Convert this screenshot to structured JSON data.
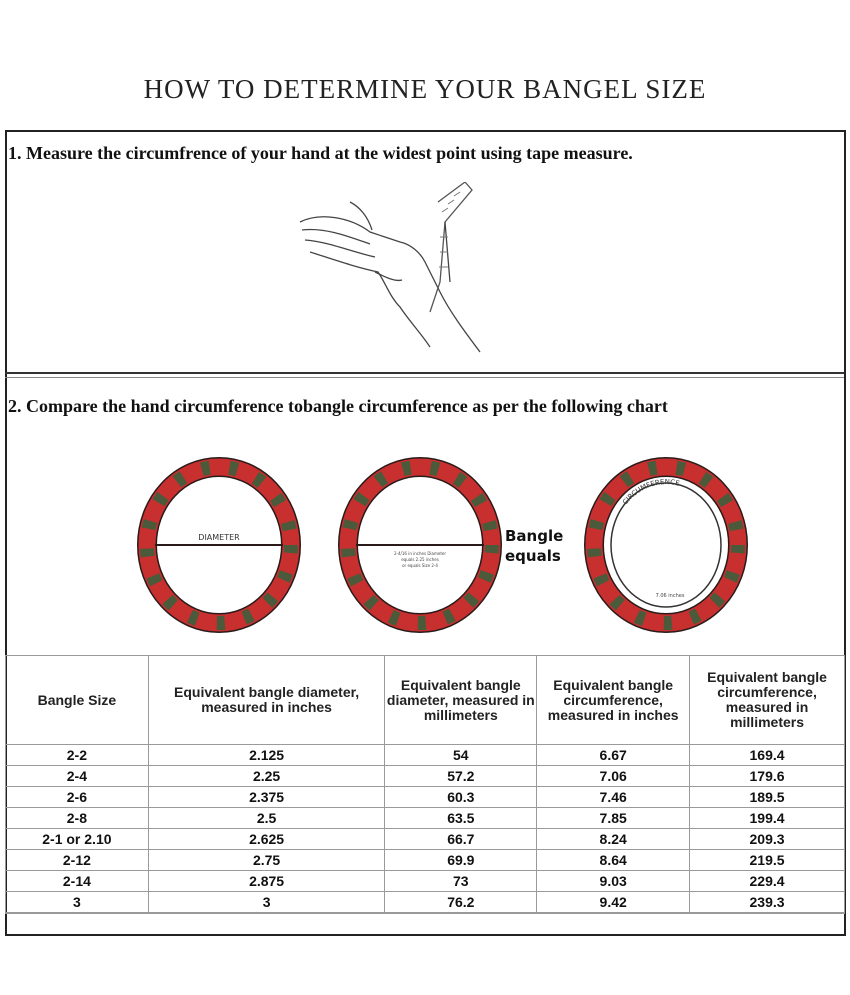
{
  "title": "HOW TO DETERMINE YOUR BANGEL SIZE",
  "step1": "1. Measure the circumfrence of your hand at the widest point using tape measure.",
  "step2": "2. Compare the hand circumference tobangle circumference as per the following chart",
  "diagram": {
    "diameter_label": "DIAMETER",
    "example_note": [
      "2-4/16 in inches Diameter",
      "equals 2.25 inches",
      "or equals Size 2-4"
    ],
    "equals_text": [
      "Bangle",
      "equals"
    ],
    "circumference_label": "CIRCUMFERENCE",
    "circumference_value": "7.06 inches",
    "colors": {
      "ring": "#c8302f",
      "triangle": "#4a5a3a",
      "outline": "#2a1a1a"
    }
  },
  "table": {
    "headers": [
      "Bangle Size",
      "Equivalent bangle diameter, measured in inches",
      "Equivalent bangle diameter, measured in millimeters",
      "Equivalent bangle circumference, measured in inches",
      "Equivalent bangle circumference, measured in millimeters"
    ],
    "rows": [
      [
        "2-2",
        "2.125",
        "54",
        "6.67",
        "169.4"
      ],
      [
        "2-4",
        "2.25",
        "57.2",
        "7.06",
        "179.6"
      ],
      [
        "2-6",
        "2.375",
        "60.3",
        "7.46",
        "189.5"
      ],
      [
        "2-8",
        "2.5",
        "63.5",
        "7.85",
        "199.4"
      ],
      [
        "2-1 or 2.10",
        "2.625",
        "66.7",
        "8.24",
        "209.3"
      ],
      [
        "2-12",
        "2.75",
        "69.9",
        "8.64",
        "219.5"
      ],
      [
        "2-14",
        "2.875",
        "73",
        "9.03",
        "229.4"
      ],
      [
        "3",
        "3",
        "76.2",
        "9.42",
        "239.3"
      ]
    ]
  }
}
